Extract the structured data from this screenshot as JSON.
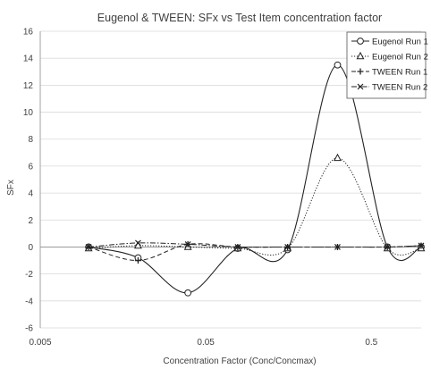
{
  "chart_data": {
    "type": "line",
    "title": "Eugenol & TWEEN: SFx vs Test Item concentration factor",
    "xlabel": "Concentration Factor (Conc/Concmax)",
    "ylabel": "SFx",
    "x_scale": "log",
    "xlim": [
      0.005,
      1
    ],
    "ylim": [
      -6,
      16
    ],
    "x_ticks": [
      0.005,
      0.05,
      0.5
    ],
    "x_tick_labels": [
      "0.005",
      "0.05",
      "0.5"
    ],
    "y_ticks": [
      -6,
      -4,
      -2,
      0,
      2,
      4,
      6,
      8,
      10,
      12,
      14,
      16
    ],
    "y_tick_labels": [
      "-6",
      "-4",
      "-2",
      "0",
      "2",
      "4",
      "6",
      "8",
      "10",
      "12",
      "14",
      "16"
    ],
    "grid": "horizontal",
    "legend_position": "top-right",
    "x": [
      0.0098,
      0.0195,
      0.039,
      0.078,
      0.156,
      0.3125,
      0.625,
      1.0
    ],
    "series": [
      {
        "name": "Eugenol Run 1",
        "marker": "circle",
        "dash": "solid",
        "color": "#222222",
        "values": [
          0,
          -0.8,
          -3.4,
          -0.1,
          -0.2,
          13.5,
          0,
          0
        ]
      },
      {
        "name": "Eugenol Run 2",
        "marker": "triangle",
        "dash": "dotted",
        "color": "#222222",
        "values": [
          -0.1,
          0.1,
          0.0,
          -0.1,
          -0.1,
          6.6,
          -0.1,
          -0.1
        ]
      },
      {
        "name": "TWEEN Run 1",
        "marker": "plus",
        "dash": "dashed",
        "color": "#222222",
        "values": [
          0,
          -1.0,
          0.2,
          0,
          0,
          0,
          0,
          0.1
        ]
      },
      {
        "name": "TWEEN Run 2",
        "marker": "x",
        "dash": "dashdot",
        "color": "#222222",
        "values": [
          0,
          0.3,
          0.2,
          0,
          0,
          0,
          0,
          0.1
        ]
      }
    ]
  }
}
